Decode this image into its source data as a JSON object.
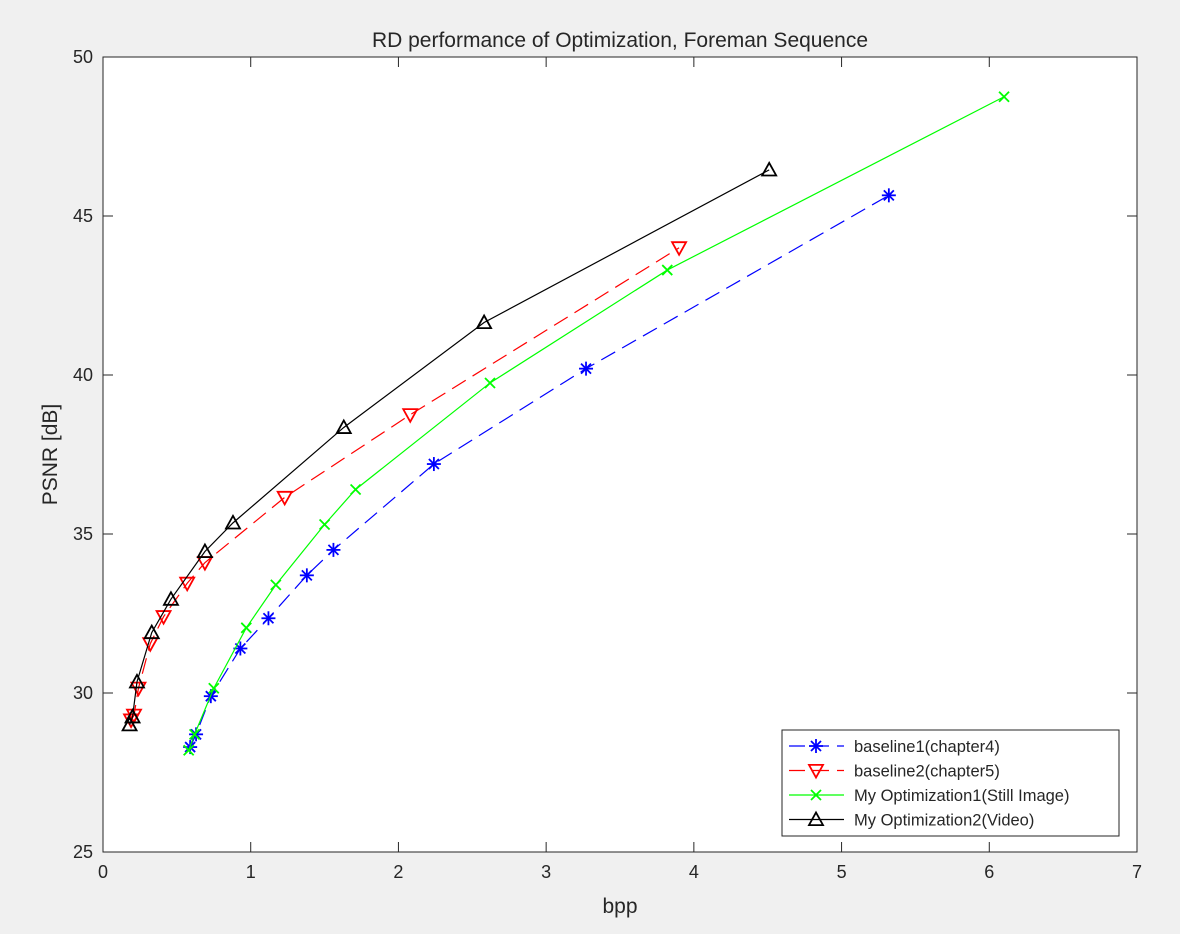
{
  "chart_data": {
    "type": "line",
    "title": "RD performance of Optimization, Foreman Sequence",
    "xlabel": "bpp",
    "ylabel": "PSNR [dB]",
    "xlim": [
      0,
      7
    ],
    "ylim": [
      25,
      50
    ],
    "xticks": [
      "0",
      "1",
      "2",
      "3",
      "4",
      "5",
      "6",
      "7"
    ],
    "yticks": [
      "25",
      "30",
      "35",
      "40",
      "45",
      "50"
    ],
    "grid": false,
    "legend_position": "bottom-right",
    "series": [
      {
        "name": "baseline1(chapter4)",
        "color": "#0000ff",
        "dash": "dashed",
        "marker": "asterisk",
        "x": [
          0.59,
          0.63,
          0.73,
          0.93,
          1.12,
          1.38,
          1.56,
          2.24,
          3.27,
          5.32
        ],
        "y": [
          28.3,
          28.7,
          29.9,
          31.4,
          32.35,
          33.7,
          34.5,
          37.2,
          40.2,
          45.65
        ]
      },
      {
        "name": "baseline2(chapter5)",
        "color": "#ff0000",
        "dash": "dashed",
        "marker": "triangle-down",
        "x": [
          0.19,
          0.21,
          0.24,
          0.32,
          0.41,
          0.57,
          0.69,
          1.23,
          2.08,
          3.9
        ],
        "y": [
          29.15,
          29.3,
          30.15,
          31.55,
          32.4,
          33.45,
          34.1,
          36.15,
          38.75,
          44.0
        ]
      },
      {
        "name": "My Optimization1(Still Image)",
        "color": "#00ff00",
        "dash": "solid",
        "marker": "x",
        "x": [
          0.58,
          0.62,
          0.75,
          0.97,
          1.17,
          1.5,
          1.71,
          2.62,
          3.82,
          6.1
        ],
        "y": [
          28.2,
          28.7,
          30.15,
          32.05,
          33.4,
          35.3,
          36.4,
          39.75,
          43.3,
          48.75
        ]
      },
      {
        "name": "My Optimization2(Video)",
        "color": "#000000",
        "dash": "solid",
        "marker": "triangle-up",
        "x": [
          0.18,
          0.2,
          0.23,
          0.33,
          0.46,
          0.69,
          0.88,
          1.63,
          2.58,
          4.51
        ],
        "y": [
          29.0,
          29.25,
          30.35,
          31.9,
          32.95,
          34.45,
          35.35,
          38.35,
          41.65,
          46.45
        ]
      }
    ]
  }
}
